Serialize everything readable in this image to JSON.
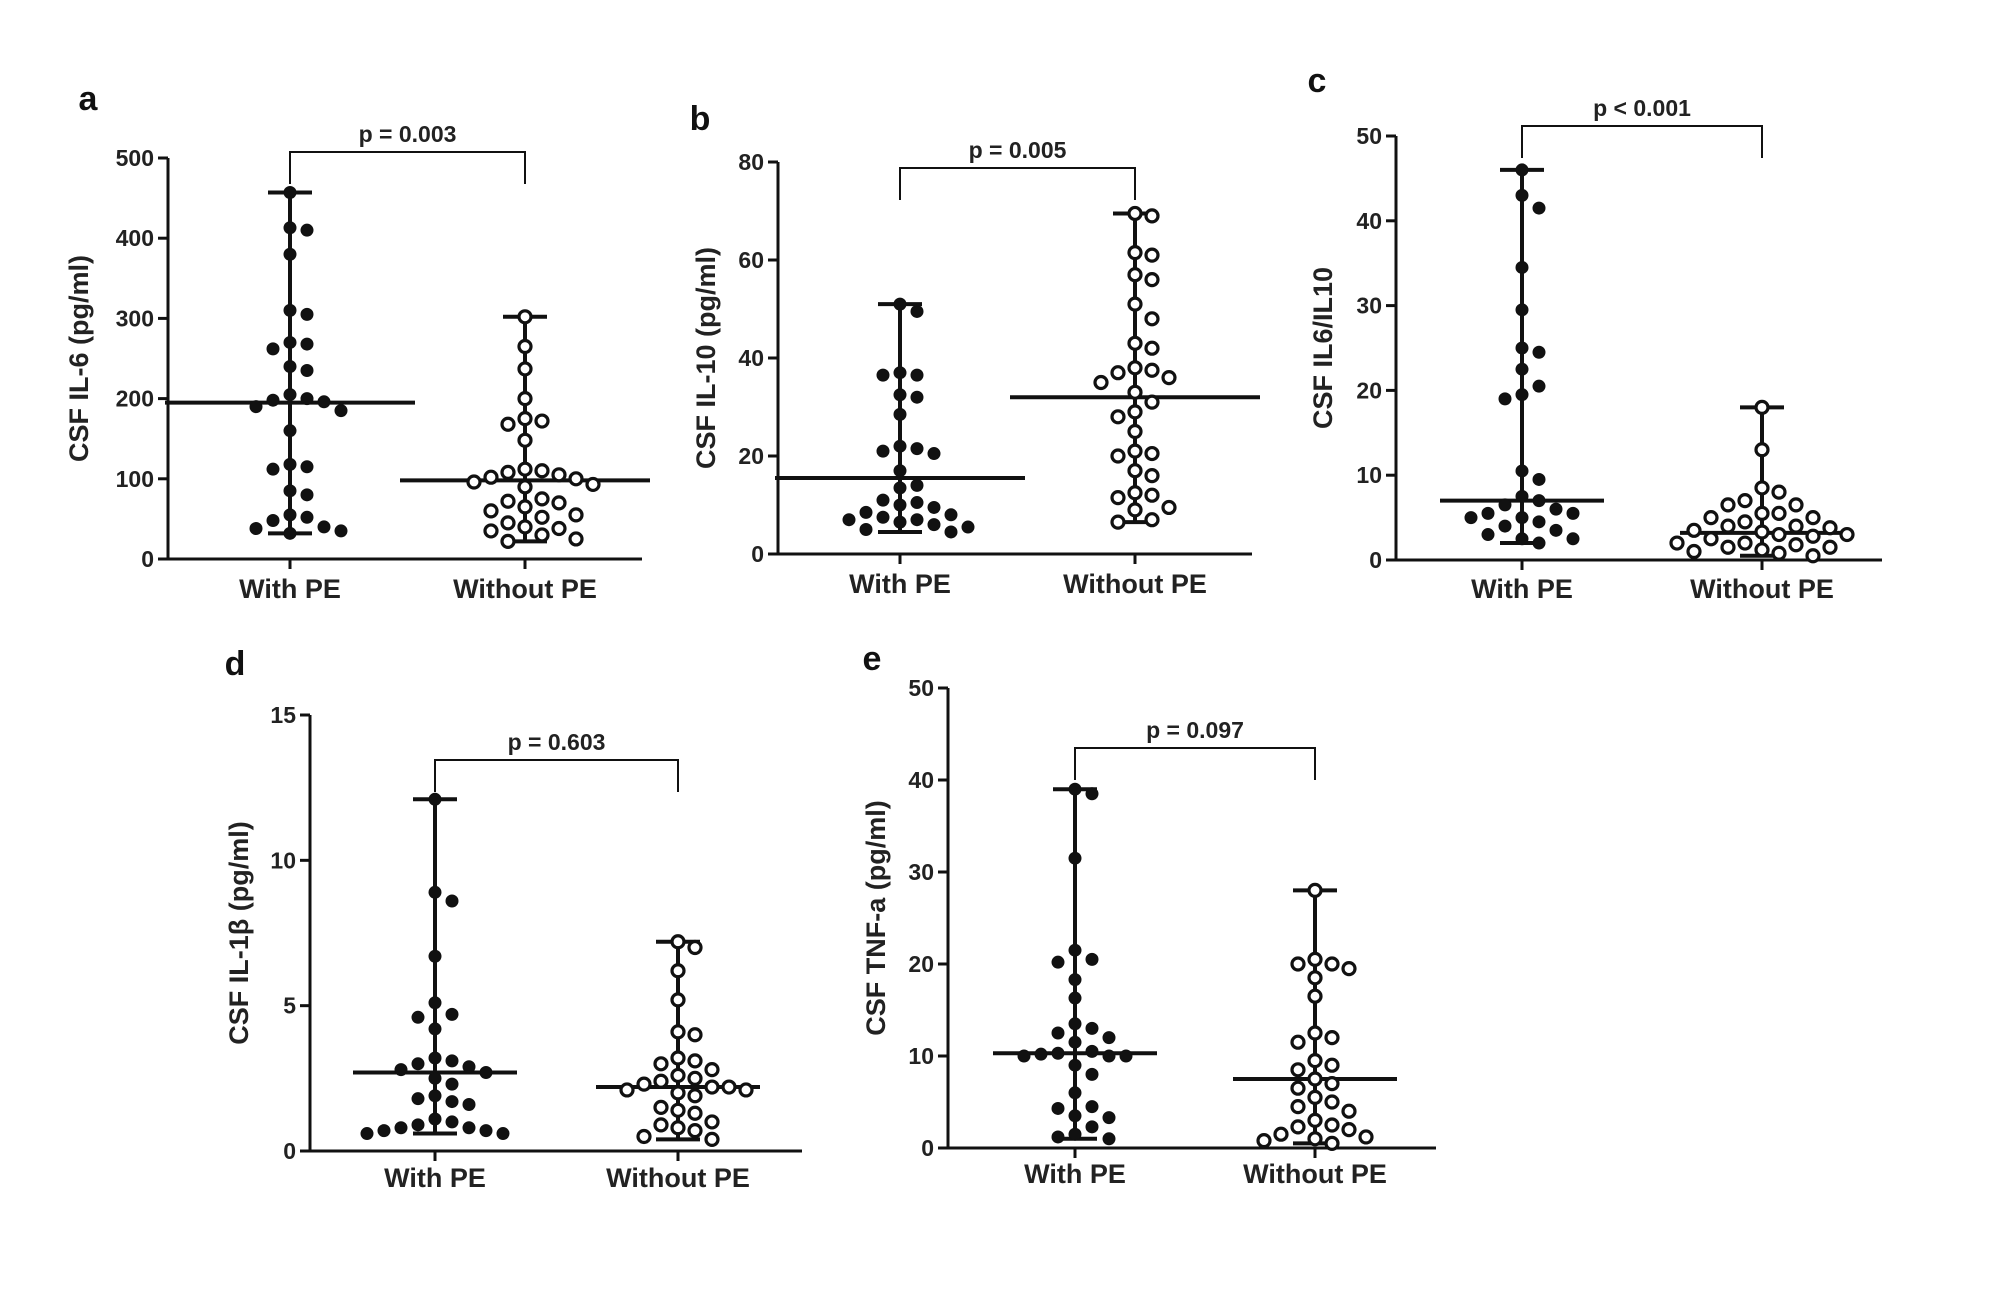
{
  "chart_data": [
    {
      "panel": "a",
      "type": "scatter",
      "title": "",
      "ylabel": "CSF IL-6 (pg/ml)",
      "xlabel": "",
      "ylim": [
        0,
        500
      ],
      "yticks": [
        0,
        100,
        200,
        300,
        400,
        500
      ],
      "categories": [
        "With PE",
        "Without PE"
      ],
      "p_value": "p = 0.003",
      "series": [
        {
          "name": "With PE",
          "marker": "filled",
          "median": 195,
          "min": 32,
          "max": 457,
          "values": [
            457,
            413,
            410,
            380,
            310,
            305,
            270,
            268,
            262,
            240,
            235,
            205,
            200,
            198,
            196,
            190,
            185,
            160,
            118,
            115,
            112,
            85,
            80,
            55,
            52,
            48,
            40,
            38,
            35,
            32
          ]
        },
        {
          "name": "Without PE",
          "marker": "open",
          "median": 98,
          "min": 22,
          "max": 302,
          "values": [
            302,
            265,
            237,
            200,
            175,
            172,
            168,
            148,
            112,
            110,
            108,
            105,
            102,
            100,
            96,
            93,
            90,
            75,
            72,
            70,
            65,
            60,
            55,
            52,
            45,
            40,
            38,
            35,
            30,
            25,
            22
          ]
        }
      ]
    },
    {
      "panel": "b",
      "type": "scatter",
      "title": "",
      "ylabel": "CSF IL-10 (pg/ml)",
      "xlabel": "",
      "ylim": [
        0,
        80
      ],
      "yticks": [
        0,
        20,
        40,
        60,
        80
      ],
      "categories": [
        "With PE",
        "Without PE"
      ],
      "p_value": "p = 0.005",
      "series": [
        {
          "name": "With PE",
          "marker": "filled",
          "median": 15.5,
          "min": 4.5,
          "max": 51,
          "values": [
            51,
            49.5,
            37,
            36.5,
            36.5,
            32.5,
            32,
            28.5,
            22,
            21.5,
            21,
            20.5,
            17,
            14,
            13.5,
            11,
            10.5,
            10,
            9.5,
            8.5,
            8,
            7.5,
            7,
            7,
            6.5,
            6,
            5.5,
            5,
            4.5
          ]
        },
        {
          "name": "Without PE",
          "marker": "open",
          "median": 32,
          "min": 6.5,
          "max": 69.5,
          "values": [
            69.5,
            69,
            61.5,
            61,
            57,
            56,
            51,
            48,
            43,
            42,
            38,
            37.5,
            37,
            36,
            35,
            33,
            31,
            29,
            28,
            25,
            21,
            20.5,
            20,
            17,
            16,
            12.5,
            12,
            11.5,
            9.5,
            9,
            7,
            6.5
          ]
        }
      ]
    },
    {
      "panel": "c",
      "type": "scatter",
      "title": "",
      "ylabel": "CSF IL6/IL10",
      "xlabel": "",
      "ylim": [
        0,
        50
      ],
      "yticks": [
        0,
        10,
        20,
        30,
        40,
        50
      ],
      "categories": [
        "With PE",
        "Without PE"
      ],
      "p_value": "p < 0.001",
      "series": [
        {
          "name": "With PE",
          "marker": "filled",
          "median": 7,
          "min": 2,
          "max": 46,
          "values": [
            46,
            43,
            41.5,
            34.5,
            29.5,
            25,
            24.5,
            22.5,
            20.5,
            19.5,
            19,
            10.5,
            9.5,
            7.5,
            7,
            6.5,
            6,
            5.5,
            5.5,
            5,
            5,
            4.5,
            4,
            3.5,
            3,
            2.5,
            2.5,
            2
          ]
        },
        {
          "name": "Without PE",
          "marker": "open",
          "median": 3.2,
          "min": 0.5,
          "max": 18,
          "values": [
            18,
            13,
            8.5,
            8,
            7,
            6.5,
            6.5,
            5.5,
            5.5,
            5,
            5,
            4.5,
            4,
            4,
            3.8,
            3.5,
            3.3,
            3,
            3,
            2.8,
            2.5,
            2,
            2,
            1.8,
            1.5,
            1.5,
            1.2,
            1,
            0.8,
            0.5
          ]
        }
      ]
    },
    {
      "panel": "d",
      "type": "scatter",
      "title": "",
      "ylabel": "CSF IL-1β  (pg/ml)",
      "xlabel": "",
      "ylim": [
        0,
        15
      ],
      "yticks": [
        0,
        5,
        10,
        15
      ],
      "categories": [
        "With PE",
        "Without PE"
      ],
      "p_value": "p = 0.603",
      "series": [
        {
          "name": "With PE",
          "marker": "filled",
          "median": 2.7,
          "min": 0.6,
          "max": 12.1,
          "values": [
            12.1,
            8.9,
            8.6,
            6.7,
            5.1,
            4.7,
            4.6,
            4.2,
            3.2,
            3.1,
            3.0,
            2.9,
            2.8,
            2.7,
            2.5,
            2.3,
            1.9,
            1.8,
            1.7,
            1.6,
            1.1,
            1.0,
            0.9,
            0.8,
            0.8,
            0.7,
            0.7,
            0.6,
            0.6
          ]
        },
        {
          "name": "Without PE",
          "marker": "open",
          "median": 2.2,
          "min": 0.4,
          "max": 7.2,
          "values": [
            7.2,
            7.0,
            6.2,
            5.2,
            4.1,
            4.0,
            3.2,
            3.1,
            3.0,
            2.8,
            2.6,
            2.5,
            2.4,
            2.3,
            2.2,
            2.2,
            2.1,
            2.1,
            2.0,
            1.9,
            1.5,
            1.4,
            1.3,
            1.0,
            0.9,
            0.8,
            0.7,
            0.5,
            0.4
          ]
        }
      ]
    },
    {
      "panel": "e",
      "type": "scatter",
      "title": "",
      "ylabel": "CSF TNF-a (pg/ml)",
      "xlabel": "",
      "ylim": [
        0,
        50
      ],
      "yticks": [
        0,
        10,
        20,
        30,
        40,
        50
      ],
      "categories": [
        "With PE",
        "Without PE"
      ],
      "p_value": "p = 0.097",
      "series": [
        {
          "name": "With PE",
          "marker": "filled",
          "median": 10.3,
          "min": 1,
          "max": 39,
          "values": [
            39,
            38.5,
            31.5,
            21.5,
            20.5,
            20.2,
            18.3,
            16.3,
            13.5,
            13,
            12.5,
            12,
            11.5,
            10.5,
            10.3,
            10.2,
            10,
            10,
            10,
            9,
            8,
            6,
            4.5,
            4.3,
            3.5,
            3.3,
            2.3,
            1.5,
            1.2,
            1
          ]
        },
        {
          "name": "Without PE",
          "marker": "open",
          "median": 7.5,
          "min": 0.5,
          "max": 28,
          "values": [
            28,
            20.5,
            20,
            20,
            19.5,
            18.5,
            16.5,
            12.5,
            12,
            11.5,
            9.5,
            9,
            8.5,
            7.5,
            7,
            6.5,
            5.5,
            5,
            4.5,
            4,
            3,
            2.5,
            2.3,
            2,
            1.5,
            1.2,
            1,
            0.8,
            0.5
          ]
        }
      ]
    }
  ]
}
